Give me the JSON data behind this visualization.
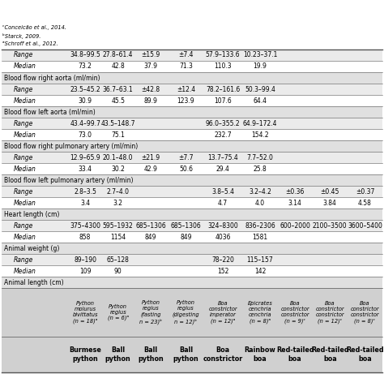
{
  "col_headers": [
    "Burmese\npython",
    "Ball\npython",
    "Ball\npython",
    "Ball\npython",
    "Boa\nconstrictor",
    "Rainbow\nboa",
    "Red-tailed\nboa",
    "Red-tailed\nboa",
    "Red-tailed\nboa"
  ],
  "col_subheaders": [
    "Python\nmolurus\nbivittatus\n(n = 18)ᵃ",
    "Python\nregius\n(n = 6)ᵃ",
    "Python\nregius\n(fasting\nn = 23)ᵇ",
    "Python\nregius\n(digesting\nn = 12)ᵇ",
    "Boa\nconstrictor\nimperator\n(n = 12)ᵃ",
    "Epicrates\ncenchria\ncenchria\n(n = 8)ᵃ",
    "Boa\nconstrictor\nconstrictor\n(n = 9)ᶜ",
    "Boa\nconstrictor\nconstrictor\n(n = 12)ᶜ",
    "Boa\nconstrictor\nconstrictor\n(n = 8)ᶜ"
  ],
  "sections": [
    {
      "title": "Animal length (cm)",
      "rows": [
        {
          "label": "Median",
          "values": [
            "109",
            "90",
            "",
            "",
            "152",
            "142",
            "",
            "",
            ""
          ]
        },
        {
          "label": "Range",
          "values": [
            "89–190",
            "65–128",
            "",
            "",
            "78–220",
            "115–157",
            "",
            "",
            ""
          ]
        }
      ]
    },
    {
      "title": "Animal weight (g)",
      "rows": [
        {
          "label": "Median",
          "values": [
            "858",
            "1154",
            "849",
            "849",
            "4036",
            "1581",
            "",
            "",
            ""
          ]
        },
        {
          "label": "Range",
          "values": [
            "375–4300",
            "595–1932",
            "685–1306",
            "685–1306",
            "324–8300",
            "836–2306",
            "600–2000",
            "2100–3500",
            "3600–5400"
          ]
        }
      ]
    },
    {
      "title": "Heart length (cm)",
      "rows": [
        {
          "label": "Median",
          "values": [
            "3.4",
            "3.2",
            "",
            "",
            "4.7",
            "4.0",
            "3.14",
            "3.84",
            "4.58"
          ]
        },
        {
          "label": "Range",
          "values": [
            "2.8–3.5",
            "2.7–4.0",
            "",
            "",
            "3.8–5.4",
            "3.2–4.2",
            "±0.36",
            "±0.45",
            "±0.37"
          ]
        }
      ]
    },
    {
      "title": "Blood flow left pulmonary artery (ml/min)",
      "rows": [
        {
          "label": "Median",
          "values": [
            "33.4",
            "30.2",
            "42.9",
            "50.6",
            "29.4",
            "25.8",
            "",
            "",
            ""
          ]
        },
        {
          "label": "Range",
          "values": [
            "12.9–65.9",
            "20.1–48.0",
            "±21.9",
            "±7.7",
            "13.7–75.4",
            "7.7–52.0",
            "",
            "",
            ""
          ]
        }
      ]
    },
    {
      "title": "Blood flow right pulmonary artery (ml/min)",
      "rows": [
        {
          "label": "Median",
          "values": [
            "73.0",
            "75.1",
            "",
            "",
            "232.7",
            "154.2",
            "",
            "",
            ""
          ]
        },
        {
          "label": "Range",
          "values": [
            "43.4–99.7",
            "43.5–148.7",
            "",
            "",
            "96.0–355.2",
            "64.9–172.4",
            "",
            "",
            ""
          ]
        }
      ]
    },
    {
      "title": "Blood flow left aorta (ml/min)",
      "rows": [
        {
          "label": "Median",
          "values": [
            "30.9",
            "45.5",
            "89.9",
            "123.9",
            "107.6",
            "64.4",
            "",
            "",
            ""
          ]
        },
        {
          "label": "Range",
          "values": [
            "23.5–45.2",
            "36.7–63.1",
            "±42.8",
            "±12.4",
            "78.2–161.6",
            "50.3–99.4",
            "",
            "",
            ""
          ]
        }
      ]
    },
    {
      "title": "Blood flow right aorta (ml/min)",
      "rows": [
        {
          "label": "Median",
          "values": [
            "73.2",
            "42.8",
            "37.9",
            "71.3",
            "110.3",
            "19.9",
            "",
            "",
            ""
          ]
        },
        {
          "label": "Range",
          "values": [
            "34.8–99.5",
            "27.8–61.4",
            "±15.9",
            "±7.4",
            "57.9–133.6",
            "10.23–37.1",
            "",
            "",
            ""
          ]
        }
      ]
    }
  ],
  "footnotes": [
    "ᵃSchroff et al., 2012.",
    "ᵇStarck, 2009.",
    "ᶜConceicão et al., 2014."
  ],
  "header_bg": "#d0d0d0",
  "subheader_bg": "#d0d0d0",
  "section_bg": "#e0e0e0",
  "row_bg_median": "#ffffff",
  "row_bg_range": "#ebebeb",
  "col_weights": [
    1.55,
    0.82,
    0.72,
    0.82,
    0.82,
    0.92,
    0.82,
    0.82,
    0.82,
    0.82
  ],
  "header_fontsize": 5.8,
  "subheader_fontsize": 4.8,
  "data_fontsize": 5.5,
  "section_fontsize": 5.5,
  "footnote_fontsize": 4.8
}
